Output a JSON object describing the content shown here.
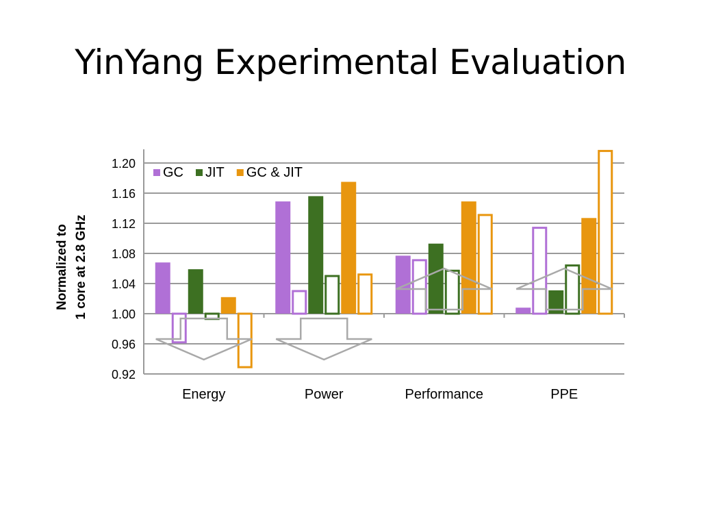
{
  "slide": {
    "title": "YinYang Experimental Evaluation"
  },
  "chart_data": {
    "type": "bar",
    "categories": [
      "Energy",
      "Power",
      "Performance",
      "PPE"
    ],
    "ylabel_lines": [
      "Normalized to",
      "1 core at 2.8 GHz"
    ],
    "ylim": [
      0.92,
      1.22
    ],
    "yticks": [
      0.92,
      0.96,
      1.0,
      1.04,
      1.08,
      1.12,
      1.16,
      1.2
    ],
    "ytick_labels": [
      "0.92",
      "0.96",
      "1.00",
      "1.04",
      "1.08",
      "1.12",
      "1.16",
      "1.20"
    ],
    "baseline": 1.0,
    "grid": true,
    "legend_position": "top-left",
    "series": [
      {
        "name": "GC",
        "color": "#b070d6",
        "style": "filled",
        "values": [
          1.068,
          1.149,
          1.077,
          1.008
        ]
      },
      {
        "name": "",
        "color": "#b070d6",
        "style": "outline",
        "values": [
          0.962,
          1.03,
          1.071,
          1.114
        ]
      },
      {
        "name": "JIT",
        "color": "#3d7022",
        "style": "filled",
        "values": [
          1.059,
          1.156,
          1.093,
          1.031
        ]
      },
      {
        "name": "",
        "color": "#3d7022",
        "style": "outline",
        "values": [
          0.993,
          1.05,
          1.057,
          1.064
        ]
      },
      {
        "name": "GC & JIT",
        "color": "#e8960f",
        "style": "filled",
        "values": [
          1.022,
          1.175,
          1.149,
          1.127
        ]
      },
      {
        "name": "",
        "color": "#e8960f",
        "style": "outline",
        "values": [
          0.929,
          1.052,
          1.131,
          1.216
        ]
      }
    ],
    "annotations": [
      {
        "type": "down-arrow",
        "category": "Energy"
      },
      {
        "type": "down-arrow",
        "category": "Power"
      },
      {
        "type": "up-arrow",
        "category": "Performance"
      },
      {
        "type": "up-arrow",
        "category": "PPE"
      }
    ]
  }
}
